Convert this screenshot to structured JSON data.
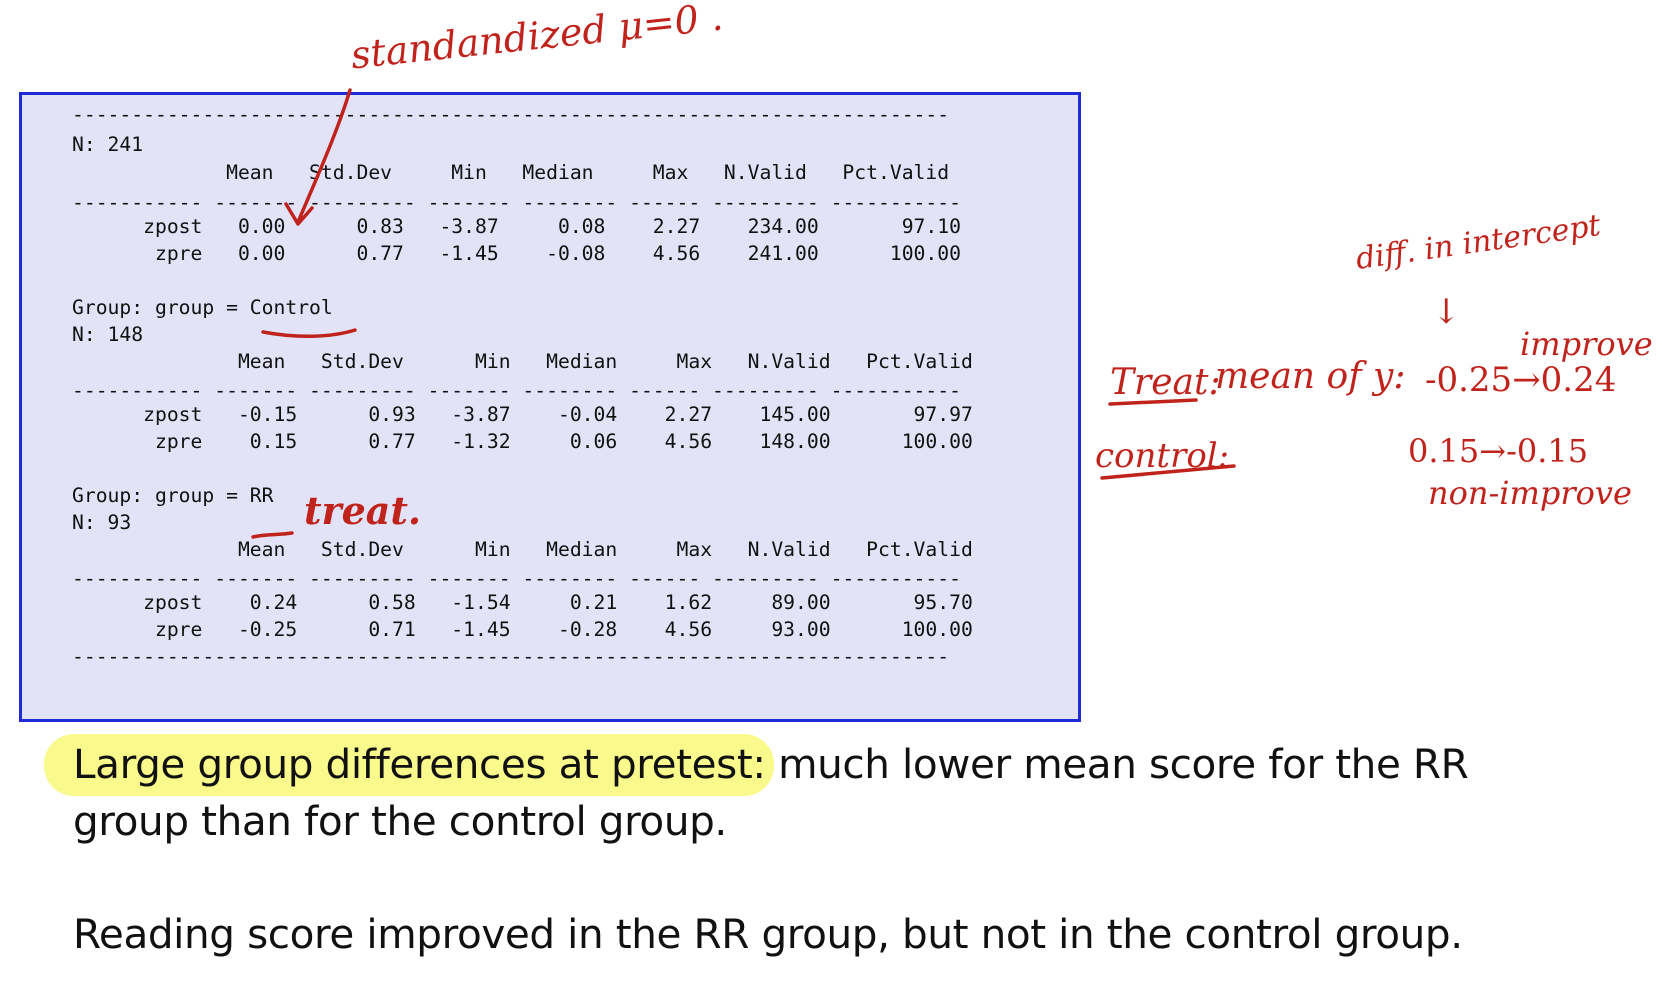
{
  "output": {
    "rule": "--------------------------------------------------------------------------",
    "sub_rule": "----------- ------- --------- ------- -------- ------ --------- -----------",
    "blocks": [
      {
        "group_line": "",
        "n_line": "N: 241",
        "header": "             Mean   Std.Dev     Min   Median     Max   N.Valid   Pct.Valid",
        "rows": [
          "      zpost   0.00      0.83   -3.87     0.08    2.27    234.00       97.10",
          "       zpre   0.00      0.77   -1.45    -0.08    4.56    241.00      100.00"
        ]
      },
      {
        "group_line": "Group: group = Control",
        "n_line": "N: 148",
        "header": "              Mean   Std.Dev      Min   Median     Max   N.Valid   Pct.Valid",
        "rows": [
          "      zpost   -0.15      0.93   -3.87    -0.04    2.27    145.00       97.97",
          "       zpre    0.15      0.77   -1.32     0.06    4.56    148.00      100.00"
        ]
      },
      {
        "group_line": "Group: group = RR",
        "n_line": "N: 93",
        "header": "              Mean   Std.Dev      Min   Median     Max   N.Valid   Pct.Valid",
        "rows": [
          "      zpost    0.24      0.58   -1.54     0.21    1.62     89.00       95.70",
          "       zpre   -0.25      0.71   -1.45    -0.28    4.56     93.00      100.00"
        ]
      }
    ]
  },
  "text": {
    "para1_highlight": "Large group differences at pretest:",
    "para1_rest": " much lower mean score for the RR",
    "para1_line2": "group than for the control group.",
    "para2": "Reading score improved in the RR group, but not in the control group."
  },
  "annotations": {
    "standardized": "standandized  μ=0 .",
    "treat_word": "treat.",
    "diff_intercept": "diff. in intercept",
    "arrow_down": "↓",
    "improve": "improve",
    "treat_label": "Treat:",
    "mean_of_y": "mean of y:",
    "treat_values": "-0.25→0.24",
    "control_label": "control:",
    "control_values": "0.15→-0.15",
    "non_improve": "non-improve"
  },
  "colors": {
    "ink": "#c0231c",
    "box_border": "#1e2bd6",
    "box_fill": "#e3e3f8",
    "highlight": "#fafa8c"
  }
}
